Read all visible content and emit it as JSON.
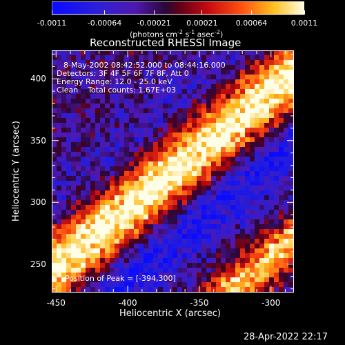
{
  "colorbar": {
    "tick_values": [
      -0.0011,
      -0.00064,
      -0.00021,
      0.00021,
      0.00064,
      0.0011
    ],
    "tick_labels": [
      "-0.0011",
      "-0.00064",
      "-0.00021",
      "0.00021",
      "0.00064",
      "0.0011"
    ],
    "units_label": "(photons cm",
    "units_exp1": "-2",
    "units_mid": " s",
    "units_exp2": "-1",
    "units_mid2": " asec",
    "units_exp3": "-2",
    "units_end": ")",
    "range": [
      -0.0011,
      0.0011
    ],
    "colormap": "blue-purple-red-yellow-white"
  },
  "title": "Reconstructed RHESSI Image",
  "annotations": {
    "line1": "8-May-2002 08:42:52.000 to 08:44:16.000",
    "line2": "Detectors: 3F 4F 5F 6F 7F 8F, Att 0",
    "line3": "Energy Range: 12.0 - 25.0 keV",
    "line4": "Clean    Total counts: 1.67E+03",
    "peak": "Position of Peak = [-394,300]"
  },
  "axes": {
    "xlabel": "Heliocentric X (arcsec)",
    "ylabel": "Heliocentric Y (arcsec)",
    "xlim": [
      -453,
      -284
    ],
    "ylim": [
      227,
      423
    ],
    "x_ticks": [
      -450,
      -400,
      -350,
      -300
    ],
    "x_tick_labels": [
      "-450",
      "-400",
      "-350",
      "-300"
    ],
    "y_ticks": [
      250,
      300,
      350,
      400
    ],
    "y_tick_labels": [
      "250",
      "300",
      "350",
      "400"
    ]
  },
  "footer": {
    "timestamp": "28-Apr-2022 22:17"
  },
  "colors": {
    "background": "#000000",
    "foreground": "#ffffff"
  }
}
